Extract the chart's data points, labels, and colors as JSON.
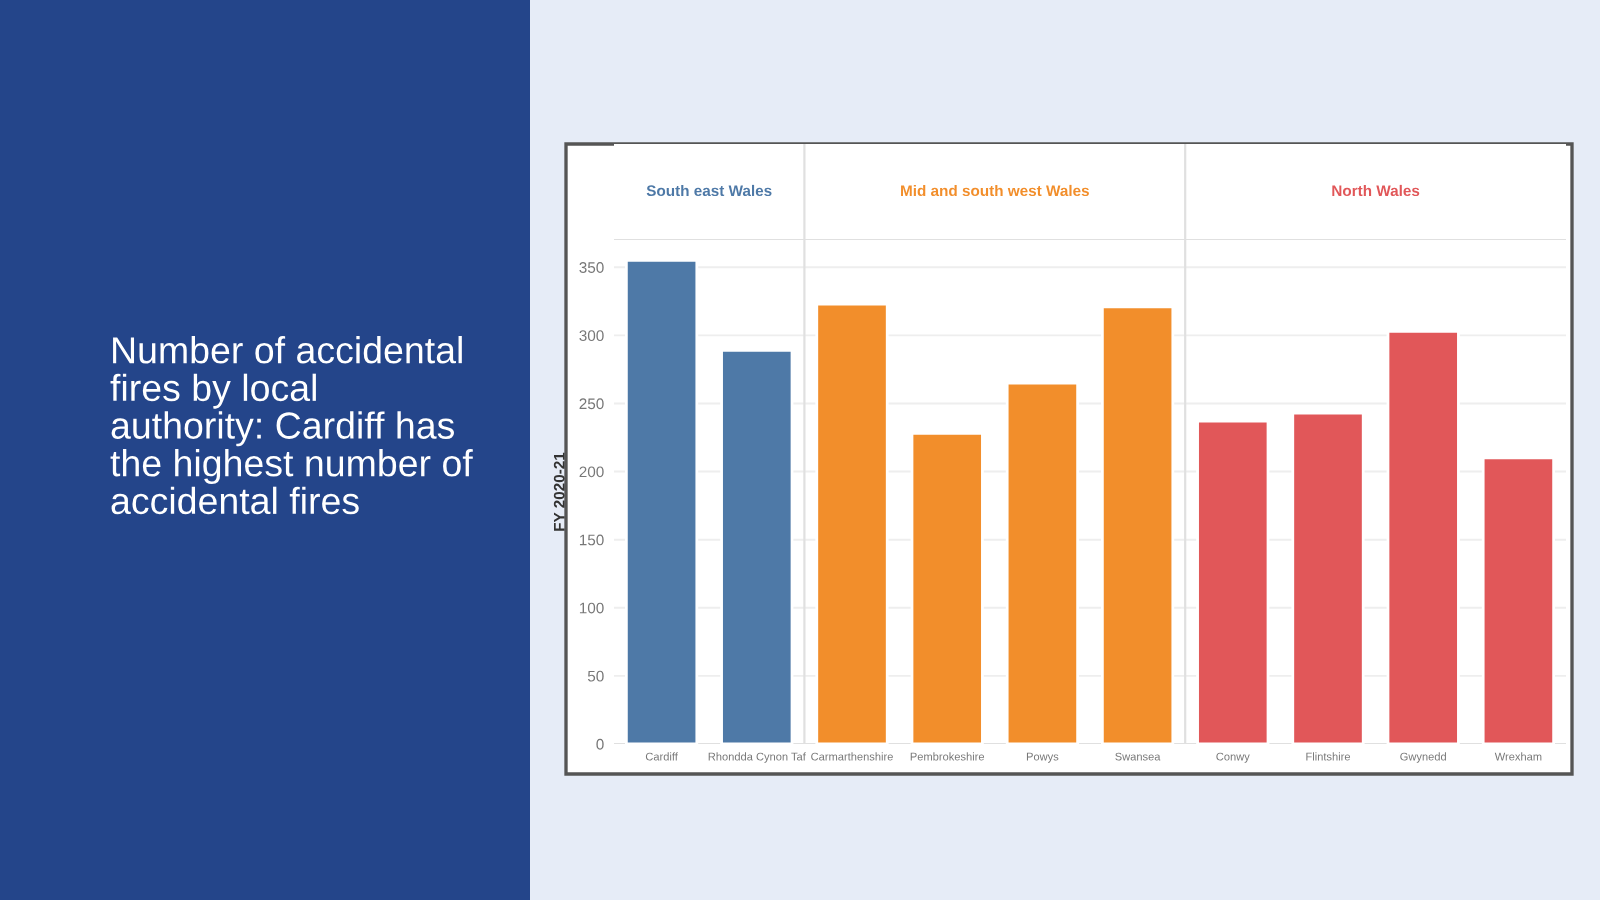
{
  "chart_data": {
    "type": "bar",
    "title": "Number of accidental fires by local authority: Cardiff has the highest number of accidental fires",
    "ylabel": "FY 2020-21",
    "categories": [
      "Cardiff",
      "Rhondda Cynon Taf",
      "Carmarthenshire",
      "Pembrokeshire",
      "Powys",
      "Swansea",
      "Conwy",
      "Flintshire",
      "Gwynedd",
      "Wrexham"
    ],
    "series": [
      {
        "name": "South east Wales",
        "color": "#4e79a7",
        "values": [
          355,
          289,
          null,
          null,
          null,
          null,
          null,
          null,
          null,
          null
        ]
      },
      {
        "name": "Mid and south west Wales",
        "color": "#f28e2b",
        "values": [
          null,
          null,
          323,
          228,
          265,
          321,
          null,
          null,
          null,
          null
        ]
      },
      {
        "name": "North Wales",
        "color": "#e15759",
        "values": [
          null,
          null,
          null,
          null,
          null,
          null,
          237,
          243,
          303,
          210
        ]
      }
    ],
    "ylim": [
      0,
      370
    ],
    "yticks": [
      0,
      50,
      100,
      150,
      200,
      250,
      300,
      350
    ],
    "grid": "y",
    "legend": false
  }
}
